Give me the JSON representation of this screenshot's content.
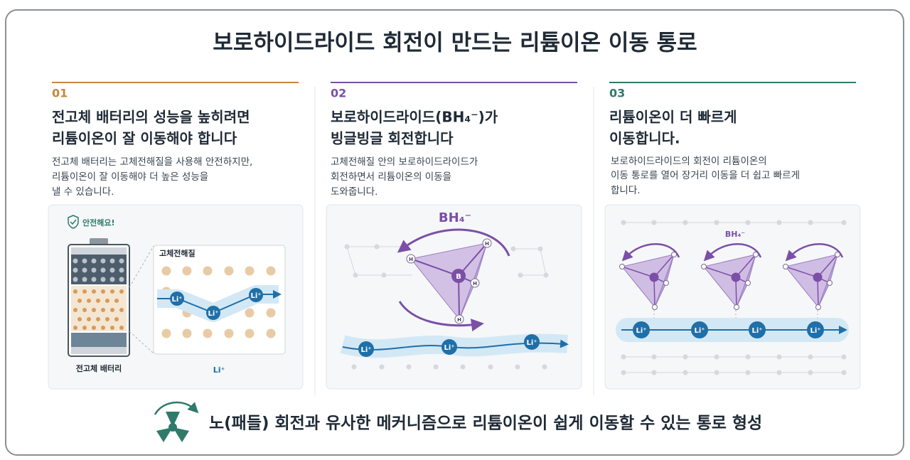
{
  "title": "보로하이드라이드 회전이 만드는 리튬이온 이동 통로",
  "panels": [
    {
      "number": "01",
      "heading": [
        "전고체 배터리의 성능을 높히려면",
        "리튬이온이 잘 이동해야 합니다"
      ],
      "body": [
        "전고체 배터리는 고체전해질을 사용해 안전하지만,",
        "리튬이온이 잘 이동해야 더 높은 성능을",
        "낼 수 있습니다."
      ]
    },
    {
      "number": "02",
      "heading": [
        "보로하이드라이드(BH₄⁻)가",
        "빙글빙글 회전합니다"
      ],
      "body": [
        "고체전해질 안의 보로하이드라이드가",
        "회전하면서 리튬이온의 이동을",
        "도와줍니다."
      ]
    },
    {
      "number": "03",
      "heading": [
        "리튬이온이 더 빠르게",
        "이동합니다."
      ],
      "body": [
        "보로하이드라이드의 회전이 리튬이온의",
        "이동 통로를 열어 장거리 이동을 더 쉽고 빠르게",
        "합니다."
      ]
    }
  ],
  "figure1": {
    "badge": "안전해요!",
    "inset_title": "고체전해질",
    "battery_label": "전고체 배터리",
    "legend": "Li⁺",
    "ions": [
      "Li⁺",
      "Li⁺",
      "Li⁺"
    ]
  },
  "figure2": {
    "molecule": "BH₄⁻",
    "center": "B",
    "atoms": [
      "H",
      "H",
      "H",
      "H"
    ],
    "ions": [
      "Li⁺",
      "Li⁺",
      "Li⁺"
    ]
  },
  "figure3": {
    "molecule": "BH₄⁻",
    "ions": [
      "Li⁺",
      "Li⁺",
      "Li⁺",
      "Li⁺"
    ]
  },
  "footer": "노(패들) 회전과 유사한 메커니즘으로 리튬이온이 쉽게 이동할 수 있는 통로 형성"
}
